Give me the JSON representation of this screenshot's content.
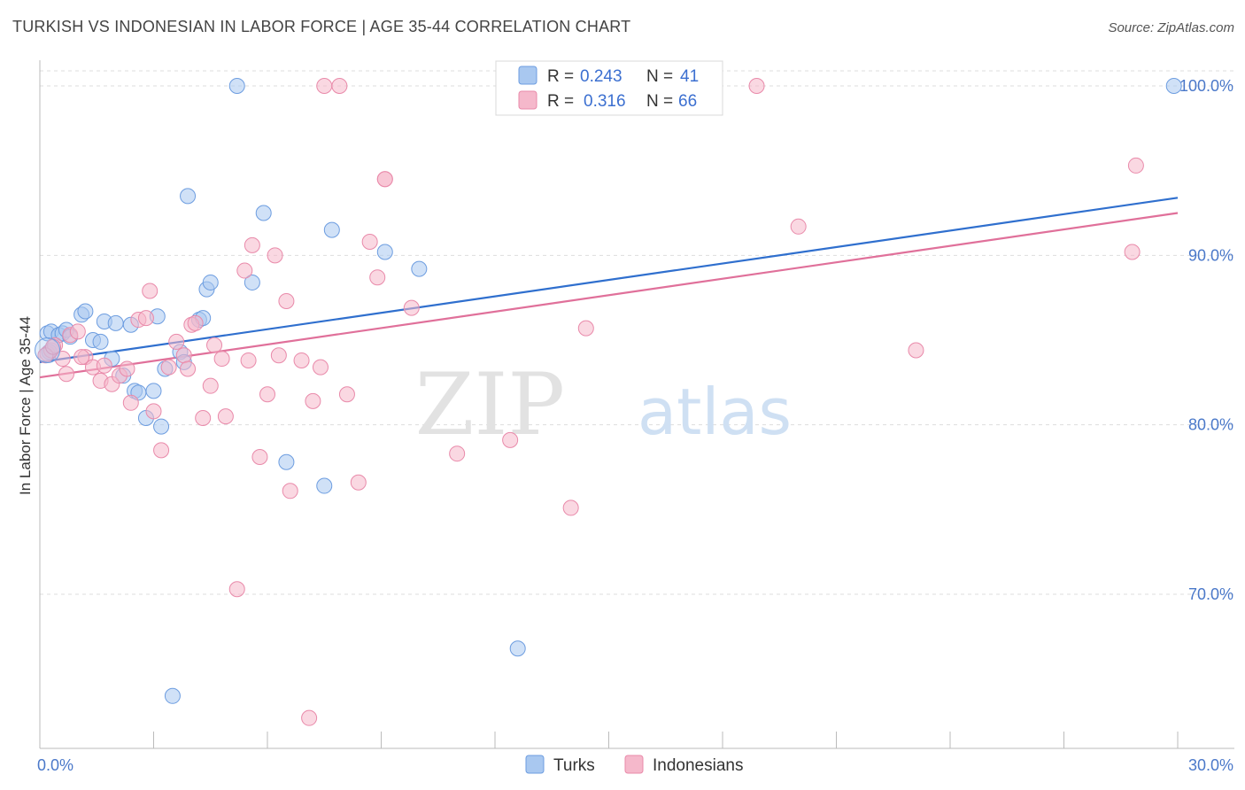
{
  "header": {
    "title": "TURKISH VS INDONESIAN IN LABOR FORCE | AGE 35-44 CORRELATION CHART",
    "source": "Source: ZipAtlas.com"
  },
  "watermark": {
    "zip": "ZIP",
    "atlas": "atlas"
  },
  "colors": {
    "turks_fill": "#a9c8f0",
    "turks_stroke": "#6d9de0",
    "turks_line": "#2f6fce",
    "indonesians_fill": "#f5b8cb",
    "indonesians_stroke": "#e98aaa",
    "indonesians_line": "#e0709a",
    "value_text": "#3b6fd0",
    "grid": "#dddddd"
  },
  "legend_top": {
    "rows": [
      {
        "r_label": "R =",
        "r_value": "0.243",
        "n_label": "N =",
        "n_value": "41"
      },
      {
        "r_label": "R =",
        "r_value": "0.316",
        "n_label": "N =",
        "n_value": "66"
      }
    ]
  },
  "chart_data": {
    "type": "scatter",
    "title": "TURKISH VS INDONESIAN IN LABOR FORCE | AGE 35-44 CORRELATION CHART",
    "xlabel": "",
    "ylabel": "In Labor Force | Age 35-44",
    "xlim": [
      0,
      30
    ],
    "ylim": [
      61.5,
      102.5
    ],
    "x_tick_labels": [
      {
        "value": 0,
        "label": "0.0%"
      },
      {
        "value": 30,
        "label": "30.0%"
      }
    ],
    "x_minor_ticks": [
      3,
      6,
      9,
      12,
      15,
      18,
      21,
      24,
      27
    ],
    "y_ticks": [
      {
        "value": 70,
        "label": "70.0%"
      },
      {
        "value": 80,
        "label": "80.0%"
      },
      {
        "value": 90,
        "label": "90.0%"
      },
      {
        "value": 100,
        "label": "100.0%"
      }
    ],
    "legend_position": "top-center",
    "series": [
      {
        "name": "Turks",
        "r": 0.243,
        "n": 41,
        "trend": {
          "x": [
            0,
            30
          ],
          "y": [
            83.7,
            93.4
          ]
        },
        "points": [
          [
            0.2,
            85.4
          ],
          [
            0.3,
            85.5
          ],
          [
            0.5,
            85.3
          ],
          [
            0.6,
            85.4
          ],
          [
            0.7,
            85.6
          ],
          [
            0.8,
            85.2
          ],
          [
            1.1,
            86.5
          ],
          [
            1.2,
            86.7
          ],
          [
            1.4,
            85.0
          ],
          [
            1.6,
            84.9
          ],
          [
            1.7,
            86.1
          ],
          [
            1.9,
            83.9
          ],
          [
            2.0,
            86.0
          ],
          [
            2.2,
            82.9
          ],
          [
            2.4,
            85.9
          ],
          [
            2.5,
            82.0
          ],
          [
            2.6,
            81.9
          ],
          [
            2.8,
            80.4
          ],
          [
            3.0,
            82.0
          ],
          [
            3.1,
            86.4
          ],
          [
            3.2,
            79.9
          ],
          [
            3.3,
            83.3
          ],
          [
            3.5,
            64.0
          ],
          [
            3.7,
            84.3
          ],
          [
            3.8,
            83.7
          ],
          [
            3.9,
            93.5
          ],
          [
            4.2,
            86.2
          ],
          [
            4.3,
            86.3
          ],
          [
            4.4,
            88.0
          ],
          [
            4.5,
            88.4
          ],
          [
            5.2,
            100.0
          ],
          [
            5.6,
            88.4
          ],
          [
            5.9,
            92.5
          ],
          [
            6.5,
            77.8
          ],
          [
            7.7,
            91.5
          ],
          [
            7.5,
            76.4
          ],
          [
            9.1,
            90.2
          ],
          [
            10.0,
            89.2
          ],
          [
            12.6,
            66.8
          ],
          [
            29.9,
            100.0
          ],
          [
            0.25,
            84.3
          ]
        ]
      },
      {
        "name": "Indonesians",
        "r": 0.316,
        "n": 66,
        "trend": {
          "x": [
            0,
            30
          ],
          "y": [
            82.8,
            92.5
          ]
        },
        "points": [
          [
            0.2,
            84.2
          ],
          [
            0.3,
            84.4
          ],
          [
            0.4,
            84.7
          ],
          [
            0.6,
            83.9
          ],
          [
            0.7,
            83.0
          ],
          [
            0.8,
            85.3
          ],
          [
            1.0,
            85.5
          ],
          [
            1.2,
            84.0
          ],
          [
            1.4,
            83.4
          ],
          [
            1.6,
            82.6
          ],
          [
            1.7,
            83.5
          ],
          [
            1.9,
            82.4
          ],
          [
            2.1,
            82.9
          ],
          [
            2.3,
            83.3
          ],
          [
            2.4,
            81.3
          ],
          [
            2.6,
            86.2
          ],
          [
            2.8,
            86.3
          ],
          [
            2.9,
            87.9
          ],
          [
            3.0,
            80.8
          ],
          [
            3.2,
            78.5
          ],
          [
            3.4,
            83.4
          ],
          [
            3.6,
            84.9
          ],
          [
            3.8,
            84.1
          ],
          [
            4.0,
            85.9
          ],
          [
            3.9,
            83.3
          ],
          [
            4.1,
            86.0
          ],
          [
            4.3,
            80.4
          ],
          [
            4.5,
            82.3
          ],
          [
            4.6,
            84.7
          ],
          [
            4.8,
            83.9
          ],
          [
            4.9,
            80.5
          ],
          [
            5.2,
            70.3
          ],
          [
            5.4,
            89.1
          ],
          [
            5.5,
            83.8
          ],
          [
            5.6,
            90.6
          ],
          [
            5.8,
            78.1
          ],
          [
            6.0,
            81.8
          ],
          [
            6.2,
            90.0
          ],
          [
            6.3,
            84.1
          ],
          [
            6.5,
            87.3
          ],
          [
            6.6,
            76.1
          ],
          [
            6.9,
            83.8
          ],
          [
            7.2,
            81.4
          ],
          [
            7.4,
            83.4
          ],
          [
            7.1,
            62.7
          ],
          [
            7.5,
            100.0
          ],
          [
            7.9,
            100.0
          ],
          [
            8.1,
            81.8
          ],
          [
            8.4,
            76.6
          ],
          [
            8.7,
            90.8
          ],
          [
            8.9,
            88.7
          ],
          [
            9.1,
            94.5
          ],
          [
            9.1,
            94.5
          ],
          [
            9.8,
            86.9
          ],
          [
            11.0,
            78.3
          ],
          [
            12.4,
            79.1
          ],
          [
            14.0,
            75.1
          ],
          [
            14.4,
            85.7
          ],
          [
            18.9,
            100.0
          ],
          [
            20.0,
            91.7
          ],
          [
            23.1,
            84.4
          ],
          [
            28.8,
            90.2
          ],
          [
            28.9,
            95.3
          ],
          [
            0.15,
            84.1
          ],
          [
            0.35,
            84.6
          ],
          [
            1.1,
            84.0
          ]
        ]
      }
    ]
  },
  "bottom_legend": [
    {
      "label": "Turks"
    },
    {
      "label": "Indonesians"
    }
  ]
}
